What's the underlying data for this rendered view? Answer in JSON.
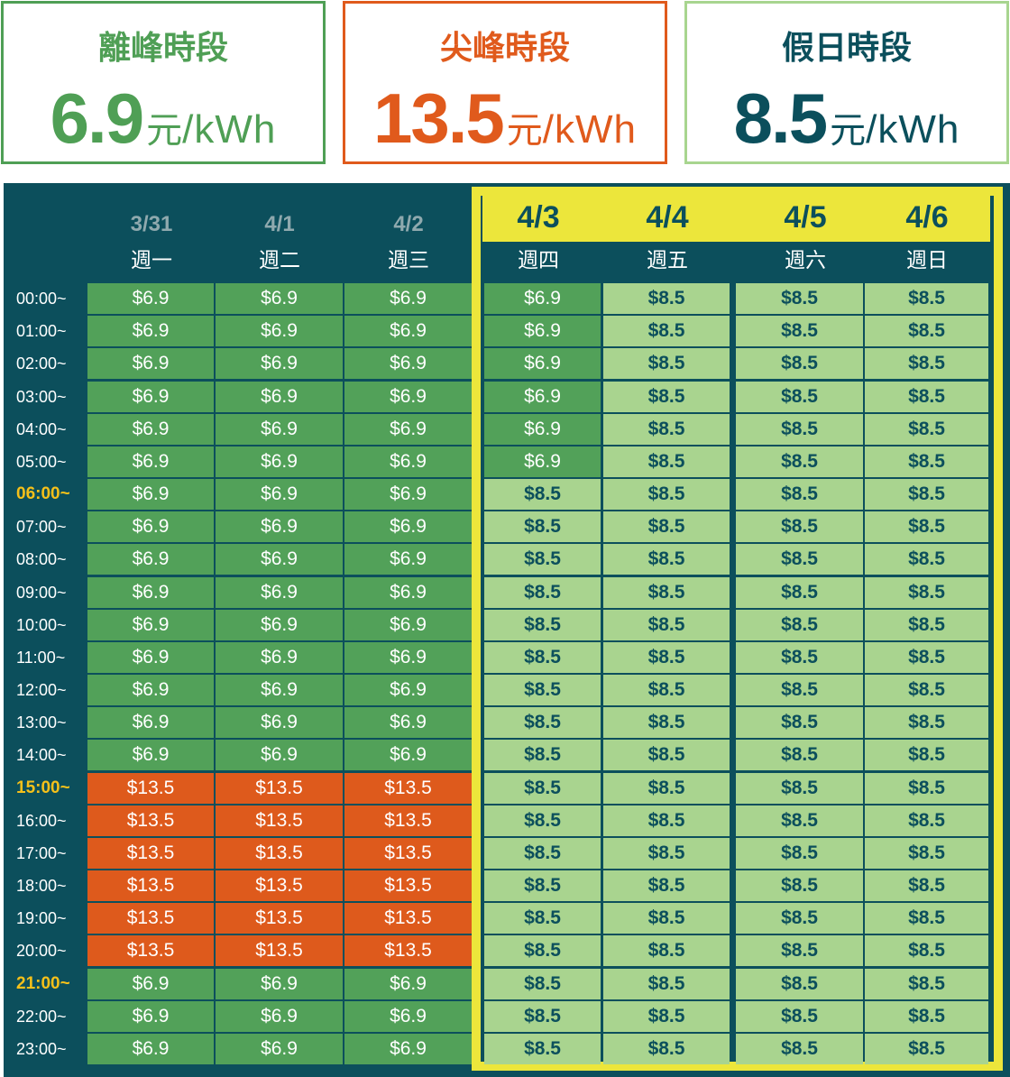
{
  "cards": [
    {
      "title": "離峰時段",
      "value": "6.9",
      "unit_cn": "元",
      "unit_en": "/kWh",
      "color": "#4f9f55"
    },
    {
      "title": "尖峰時段",
      "value": "13.5",
      "unit_cn": "元",
      "unit_en": "/kWh",
      "color": "#e05a1c"
    },
    {
      "title": "假日時段",
      "value": "8.5",
      "unit_cn": "元",
      "unit_en": "/kWh",
      "color": "#0b4f5c"
    }
  ],
  "columns": [
    {
      "date": "3/31",
      "weekday": "週一",
      "highlight": false
    },
    {
      "date": "4/1",
      "weekday": "週二",
      "highlight": false
    },
    {
      "date": "4/2",
      "weekday": "週三",
      "highlight": false
    },
    {
      "date": "4/3",
      "weekday": "週四",
      "highlight": true
    },
    {
      "date": "4/4",
      "weekday": "週五",
      "highlight": true
    },
    {
      "date": "4/5",
      "weekday": "週六",
      "highlight": true
    },
    {
      "date": "4/6",
      "weekday": "週日",
      "highlight": true
    }
  ],
  "times": [
    {
      "label": "00:00~",
      "highlight": false
    },
    {
      "label": "01:00~",
      "highlight": false
    },
    {
      "label": "02:00~",
      "highlight": false
    },
    {
      "label": "03:00~",
      "highlight": false
    },
    {
      "label": "04:00~",
      "highlight": false
    },
    {
      "label": "05:00~",
      "highlight": false
    },
    {
      "label": "06:00~",
      "highlight": true
    },
    {
      "label": "07:00~",
      "highlight": false
    },
    {
      "label": "08:00~",
      "highlight": false
    },
    {
      "label": "09:00~",
      "highlight": false
    },
    {
      "label": "10:00~",
      "highlight": false
    },
    {
      "label": "11:00~",
      "highlight": false
    },
    {
      "label": "12:00~",
      "highlight": false
    },
    {
      "label": "13:00~",
      "highlight": false
    },
    {
      "label": "14:00~",
      "highlight": false
    },
    {
      "label": "15:00~",
      "highlight": true
    },
    {
      "label": "16:00~",
      "highlight": false
    },
    {
      "label": "17:00~",
      "highlight": false
    },
    {
      "label": "18:00~",
      "highlight": false
    },
    {
      "label": "19:00~",
      "highlight": false
    },
    {
      "label": "20:00~",
      "highlight": false
    },
    {
      "label": "21:00~",
      "highlight": true
    },
    {
      "label": "22:00~",
      "highlight": false
    },
    {
      "label": "23:00~",
      "highlight": false
    }
  ],
  "rates": [
    [
      "$6.9",
      "$6.9",
      "$6.9",
      "$6.9",
      "$8.5",
      "$8.5",
      "$8.5"
    ],
    [
      "$6.9",
      "$6.9",
      "$6.9",
      "$6.9",
      "$8.5",
      "$8.5",
      "$8.5"
    ],
    [
      "$6.9",
      "$6.9",
      "$6.9",
      "$6.9",
      "$8.5",
      "$8.5",
      "$8.5"
    ],
    [
      "$6.9",
      "$6.9",
      "$6.9",
      "$6.9",
      "$8.5",
      "$8.5",
      "$8.5"
    ],
    [
      "$6.9",
      "$6.9",
      "$6.9",
      "$6.9",
      "$8.5",
      "$8.5",
      "$8.5"
    ],
    [
      "$6.9",
      "$6.9",
      "$6.9",
      "$6.9",
      "$8.5",
      "$8.5",
      "$8.5"
    ],
    [
      "$6.9",
      "$6.9",
      "$6.9",
      "$8.5",
      "$8.5",
      "$8.5",
      "$8.5"
    ],
    [
      "$6.9",
      "$6.9",
      "$6.9",
      "$8.5",
      "$8.5",
      "$8.5",
      "$8.5"
    ],
    [
      "$6.9",
      "$6.9",
      "$6.9",
      "$8.5",
      "$8.5",
      "$8.5",
      "$8.5"
    ],
    [
      "$6.9",
      "$6.9",
      "$6.9",
      "$8.5",
      "$8.5",
      "$8.5",
      "$8.5"
    ],
    [
      "$6.9",
      "$6.9",
      "$6.9",
      "$8.5",
      "$8.5",
      "$8.5",
      "$8.5"
    ],
    [
      "$6.9",
      "$6.9",
      "$6.9",
      "$8.5",
      "$8.5",
      "$8.5",
      "$8.5"
    ],
    [
      "$6.9",
      "$6.9",
      "$6.9",
      "$8.5",
      "$8.5",
      "$8.5",
      "$8.5"
    ],
    [
      "$6.9",
      "$6.9",
      "$6.9",
      "$8.5",
      "$8.5",
      "$8.5",
      "$8.5"
    ],
    [
      "$6.9",
      "$6.9",
      "$6.9",
      "$8.5",
      "$8.5",
      "$8.5",
      "$8.5"
    ],
    [
      "$13.5",
      "$13.5",
      "$13.5",
      "$8.5",
      "$8.5",
      "$8.5",
      "$8.5"
    ],
    [
      "$13.5",
      "$13.5",
      "$13.5",
      "$8.5",
      "$8.5",
      "$8.5",
      "$8.5"
    ],
    [
      "$13.5",
      "$13.5",
      "$13.5",
      "$8.5",
      "$8.5",
      "$8.5",
      "$8.5"
    ],
    [
      "$13.5",
      "$13.5",
      "$13.5",
      "$8.5",
      "$8.5",
      "$8.5",
      "$8.5"
    ],
    [
      "$13.5",
      "$13.5",
      "$13.5",
      "$8.5",
      "$8.5",
      "$8.5",
      "$8.5"
    ],
    [
      "$13.5",
      "$13.5",
      "$13.5",
      "$8.5",
      "$8.5",
      "$8.5",
      "$8.5"
    ],
    [
      "$6.9",
      "$6.9",
      "$6.9",
      "$8.5",
      "$8.5",
      "$8.5",
      "$8.5"
    ],
    [
      "$6.9",
      "$6.9",
      "$6.9",
      "$8.5",
      "$8.5",
      "$8.5",
      "$8.5"
    ],
    [
      "$6.9",
      "$6.9",
      "$6.9",
      "$8.5",
      "$8.5",
      "$8.5",
      "$8.5"
    ]
  ],
  "colors": {
    "offpeak": "#52a159",
    "peak": "#de5a1c",
    "holiday": "#a9d48f",
    "panel": "#0c4f5c",
    "highlight": "#ece63b",
    "time_highlight": "#f5c01a"
  }
}
